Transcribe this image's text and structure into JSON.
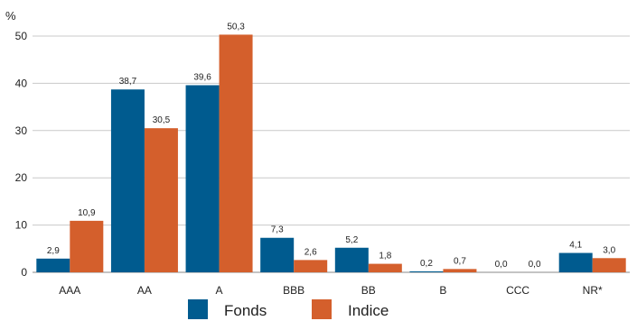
{
  "chart_data": {
    "type": "bar",
    "unit_label": "%",
    "categories": [
      "AAA",
      "AA",
      "A",
      "BBB",
      "BB",
      "B",
      "CCC",
      "NR*"
    ],
    "series": [
      {
        "name": "Fonds",
        "color": "#005b8f",
        "values": [
          2.9,
          38.7,
          39.6,
          7.3,
          5.2,
          0.2,
          0.0,
          4.1
        ],
        "labels": [
          "2,9",
          "38,7",
          "39,6",
          "7,3",
          "5,2",
          "0,2",
          "0,0",
          "4,1"
        ]
      },
      {
        "name": "Indice",
        "color": "#d45f2c",
        "values": [
          10.9,
          30.5,
          50.3,
          2.6,
          1.8,
          0.7,
          0.0,
          3.0
        ],
        "labels": [
          "10,9",
          "30,5",
          "50,3",
          "2,6",
          "1,8",
          "0,7",
          "0,0",
          "3,0"
        ]
      }
    ],
    "ylim": [
      0,
      50
    ],
    "yticks": [
      0,
      10,
      20,
      30,
      40,
      50
    ],
    "grid": true,
    "legend_position": "bottom-center"
  }
}
